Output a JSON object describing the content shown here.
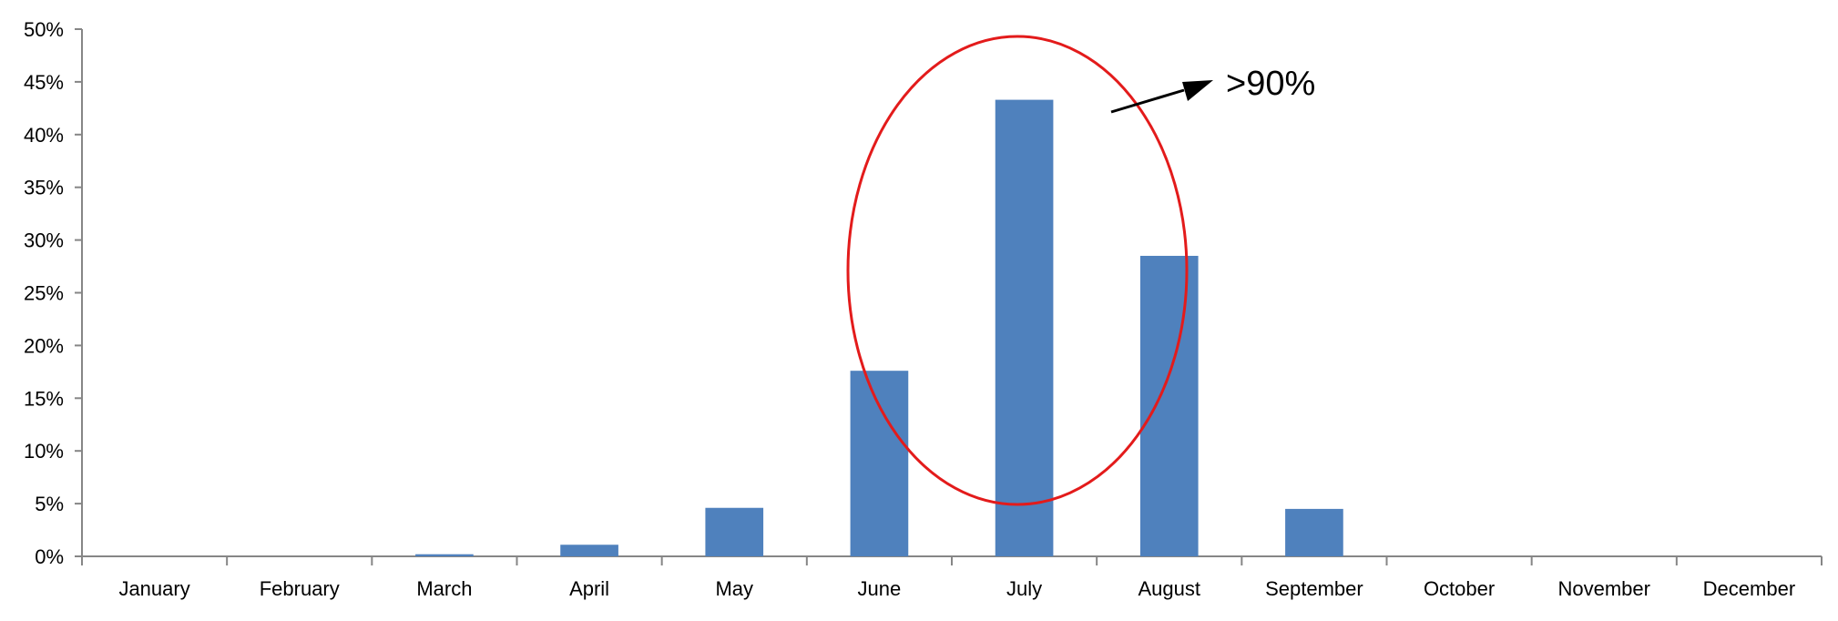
{
  "chart_data": {
    "type": "bar",
    "categories": [
      "January",
      "February",
      "March",
      "April",
      "May",
      "June",
      "July",
      "August",
      "September",
      "October",
      "November",
      "December"
    ],
    "values": [
      0.0,
      0.0,
      0.2,
      1.1,
      4.6,
      17.6,
      43.3,
      28.5,
      4.5,
      0.0,
      0.0,
      0.0
    ],
    "ylim": [
      0,
      50
    ],
    "yticks": [
      "0%",
      "5%",
      "10%",
      "15%",
      "20%",
      "25%",
      "30%",
      "35%",
      "40%",
      "45%",
      "50%"
    ],
    "grid": false,
    "annotation": ">90%",
    "colors": {
      "bar": "#4f81bd",
      "highlight": "#e31b1b",
      "axis": "#868686"
    }
  }
}
